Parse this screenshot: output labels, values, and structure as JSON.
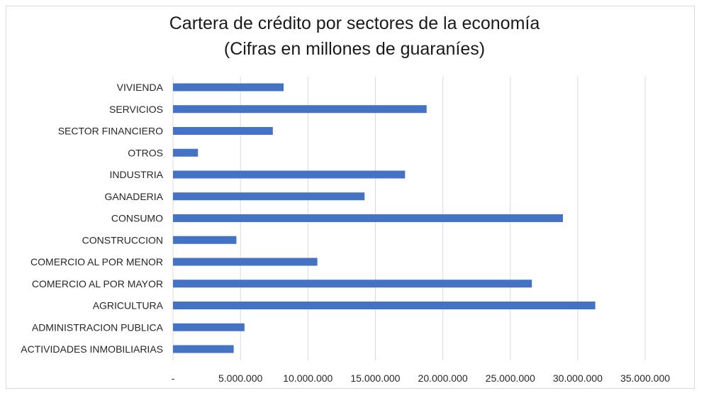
{
  "chart_data": {
    "type": "bar",
    "orientation": "horizontal",
    "title": "Cartera de crédito por sectores de la economía",
    "subtitle": "(Cifras en millones de guaraníes)",
    "categories": [
      "VIVIENDA",
      "SERVICIOS",
      "SECTOR FINANCIERO",
      "OTROS",
      "INDUSTRIA",
      "GANADERIA",
      "CONSUMO",
      "CONSTRUCCION",
      "COMERCIO AL POR MENOR",
      "COMERCIO AL POR MAYOR",
      "AGRICULTURA",
      "ADMINISTRACION PUBLICA",
      "ACTIVIDADES INMOBILIARIAS"
    ],
    "values": [
      8200000,
      18800000,
      7400000,
      1850000,
      17200000,
      14200000,
      28900000,
      4700000,
      10700000,
      26600000,
      31300000,
      5300000,
      4500000
    ],
    "xlim": [
      0,
      35000000
    ],
    "xticks": [
      "-",
      "5.000.000",
      "10.000.000",
      "15.000.000",
      "20.000.000",
      "25.000.000",
      "30.000.000",
      "35.000.000"
    ],
    "grid": "vertical",
    "legend": "none",
    "bar_color": "#4472c4",
    "grid_color": "#d9d9d9"
  }
}
